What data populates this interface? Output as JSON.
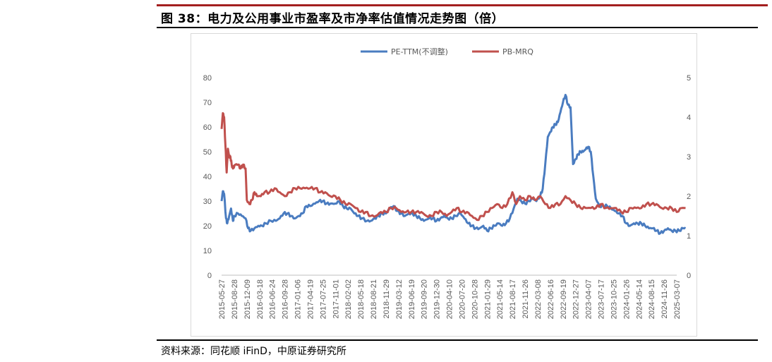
{
  "header": {
    "title": "图 38：电力及公用事业市盈率及市净率估值情况走势图（倍）"
  },
  "footer": {
    "source": "资料来源：同花顺 iFinD，中原证券研究所"
  },
  "colors": {
    "pe": "#4a7cc0",
    "pb": "#c0504d",
    "accent": "#a31f1f"
  },
  "chart_data": {
    "type": "line",
    "title": "电力及公用事业市盈率及市净率估值情况走势图（倍）",
    "legend_position": "top-center",
    "x_tick_labels": [
      "2015-05-27",
      "2015-08-28",
      "2015-12-09",
      "2016-03-18",
      "2016-06-24",
      "2016-09-28",
      "2017-01-06",
      "2017-04-19",
      "2017-07-25",
      "2017-11-01",
      "2018-02-02",
      "2018-05-18",
      "2018-08-21",
      "2018-11-29",
      "2019-03-12",
      "2019-06-19",
      "2019-09-20",
      "2019-12-30",
      "2020-04-10",
      "2020-07-20",
      "2020-10-28",
      "2021-01-29",
      "2021-05-14",
      "2021-08-17",
      "2021-11-26",
      "2022-03-08",
      "2022-06-16",
      "2022-09-19",
      "2022-12-27",
      "2023-04-07",
      "2023-07-17",
      "2023-10-25",
      "2024-01-26",
      "2024-05-14",
      "2024-08-15",
      "2024-11-26",
      "2025-03-07"
    ],
    "y_left": {
      "min": 0,
      "max": 80,
      "ticks": [
        0,
        10,
        20,
        30,
        40,
        50,
        60,
        70,
        80
      ]
    },
    "y_right": {
      "min": 0,
      "max": 5,
      "ticks": [
        0,
        1,
        2,
        3,
        4,
        5
      ]
    },
    "series": [
      {
        "name": "PE-TTM(不调整)",
        "axis": "left",
        "points": [
          [
            0,
            30
          ],
          [
            0.1,
            34
          ],
          [
            0.2,
            33
          ],
          [
            0.35,
            23
          ],
          [
            0.45,
            21
          ],
          [
            0.6,
            24
          ],
          [
            0.75,
            27
          ],
          [
            0.9,
            22
          ],
          [
            1.0,
            24
          ],
          [
            1.3,
            25
          ],
          [
            1.6,
            24
          ],
          [
            1.9,
            23
          ],
          [
            2.1,
            19
          ],
          [
            2.3,
            18
          ],
          [
            2.6,
            19
          ],
          [
            2.9,
            20
          ],
          [
            3.2,
            20
          ],
          [
            3.5,
            21
          ],
          [
            3.9,
            22
          ],
          [
            4.3,
            22
          ],
          [
            4.6,
            23
          ],
          [
            4.9,
            25
          ],
          [
            5.2,
            25
          ],
          [
            5.5,
            24
          ],
          [
            5.8,
            23
          ],
          [
            6.1,
            24
          ],
          [
            6.4,
            25
          ],
          [
            6.7,
            28
          ],
          [
            7.0,
            28
          ],
          [
            7.4,
            29
          ],
          [
            7.7,
            30
          ],
          [
            8.0,
            30
          ],
          [
            8.3,
            29
          ],
          [
            8.6,
            29
          ],
          [
            9.0,
            29
          ],
          [
            9.3,
            30
          ],
          [
            9.6,
            28
          ],
          [
            9.9,
            27
          ],
          [
            10.2,
            27
          ],
          [
            10.5,
            25
          ],
          [
            10.8,
            24
          ],
          [
            11.1,
            23
          ],
          [
            11.5,
            22
          ],
          [
            11.8,
            22
          ],
          [
            12.1,
            23
          ],
          [
            12.4,
            24
          ],
          [
            12.7,
            25
          ],
          [
            13.0,
            25
          ],
          [
            13.3,
            27
          ],
          [
            13.6,
            28
          ],
          [
            13.9,
            26
          ],
          [
            14.2,
            25
          ],
          [
            14.5,
            24
          ],
          [
            14.8,
            25
          ],
          [
            15.1,
            25
          ],
          [
            15.4,
            24
          ],
          [
            15.7,
            23
          ],
          [
            16.0,
            22
          ],
          [
            16.4,
            23
          ],
          [
            16.7,
            23
          ],
          [
            17.0,
            22
          ],
          [
            17.3,
            23
          ],
          [
            17.6,
            24
          ],
          [
            17.9,
            23
          ],
          [
            18.2,
            23
          ],
          [
            18.5,
            24
          ],
          [
            18.9,
            25
          ],
          [
            19.2,
            23
          ],
          [
            19.5,
            21
          ],
          [
            19.8,
            20
          ],
          [
            20.1,
            19
          ],
          [
            20.4,
            19
          ],
          [
            20.7,
            20
          ],
          [
            21.0,
            18
          ],
          [
            21.3,
            19
          ],
          [
            21.6,
            20
          ],
          [
            21.9,
            21
          ],
          [
            22.2,
            20
          ],
          [
            22.5,
            21
          ],
          [
            22.8,
            23
          ],
          [
            23.1,
            27
          ],
          [
            23.4,
            31
          ],
          [
            23.7,
            30
          ],
          [
            24.0,
            29
          ],
          [
            24.3,
            30
          ],
          [
            24.6,
            31
          ],
          [
            24.9,
            30
          ],
          [
            25.2,
            32
          ],
          [
            25.4,
            35
          ],
          [
            25.6,
            45
          ],
          [
            25.8,
            56
          ],
          [
            26.0,
            58
          ],
          [
            26.2,
            60
          ],
          [
            26.4,
            61
          ],
          [
            26.6,
            62
          ],
          [
            26.8,
            66
          ],
          [
            27.0,
            70
          ],
          [
            27.2,
            73
          ],
          [
            27.4,
            69
          ],
          [
            27.6,
            68
          ],
          [
            27.8,
            45
          ],
          [
            28.0,
            47
          ],
          [
            28.2,
            49
          ],
          [
            28.4,
            50
          ],
          [
            28.6,
            50
          ],
          [
            28.8,
            51
          ],
          [
            29.0,
            52
          ],
          [
            29.2,
            50
          ],
          [
            29.4,
            40
          ],
          [
            29.6,
            31
          ],
          [
            29.9,
            28
          ],
          [
            30.2,
            28
          ],
          [
            30.5,
            28
          ],
          [
            30.8,
            27
          ],
          [
            31.1,
            26
          ],
          [
            31.4,
            25
          ],
          [
            31.7,
            24
          ],
          [
            32.0,
            21
          ],
          [
            32.3,
            20
          ],
          [
            32.6,
            21
          ],
          [
            32.9,
            21
          ],
          [
            33.2,
            21
          ],
          [
            33.5,
            20
          ],
          [
            33.8,
            19
          ],
          [
            34.1,
            19
          ],
          [
            34.4,
            18
          ],
          [
            34.7,
            17
          ],
          [
            35.0,
            18
          ],
          [
            35.3,
            19
          ],
          [
            35.6,
            18
          ],
          [
            35.9,
            18
          ],
          [
            36.2,
            18
          ],
          [
            36.5,
            19
          ],
          [
            36.7,
            19
          ]
        ]
      },
      {
        "name": "PB-MRQ",
        "axis": "right",
        "points": [
          [
            0,
            3.7
          ],
          [
            0.1,
            4.1
          ],
          [
            0.2,
            4.0
          ],
          [
            0.3,
            3.3
          ],
          [
            0.4,
            2.6
          ],
          [
            0.5,
            3.2
          ],
          [
            0.6,
            3.0
          ],
          [
            0.7,
            3.0
          ],
          [
            0.8,
            2.8
          ],
          [
            0.9,
            2.7
          ],
          [
            1.1,
            2.8
          ],
          [
            1.3,
            2.8
          ],
          [
            1.5,
            2.7
          ],
          [
            1.7,
            2.8
          ],
          [
            1.9,
            2.7
          ],
          [
            2.0,
            1.9
          ],
          [
            2.2,
            1.8
          ],
          [
            2.4,
            1.9
          ],
          [
            2.6,
            2.1
          ],
          [
            2.8,
            2.0
          ],
          [
            3.1,
            2.0
          ],
          [
            3.4,
            2.1
          ],
          [
            3.8,
            2.1
          ],
          [
            4.2,
            2.2
          ],
          [
            4.6,
            2.1
          ],
          [
            5.0,
            2.0
          ],
          [
            5.4,
            2.1
          ],
          [
            5.8,
            2.2
          ],
          [
            6.2,
            2.2
          ],
          [
            6.6,
            2.2
          ],
          [
            7.0,
            2.2
          ],
          [
            7.4,
            2.2
          ],
          [
            7.8,
            2.1
          ],
          [
            8.2,
            2.1
          ],
          [
            8.6,
            2.0
          ],
          [
            9.0,
            2.0
          ],
          [
            9.4,
            1.9
          ],
          [
            9.8,
            1.8
          ],
          [
            10.2,
            1.8
          ],
          [
            10.6,
            1.7
          ],
          [
            11.0,
            1.6
          ],
          [
            11.4,
            1.6
          ],
          [
            11.8,
            1.5
          ],
          [
            12.2,
            1.5
          ],
          [
            12.6,
            1.6
          ],
          [
            13.0,
            1.6
          ],
          [
            13.4,
            1.7
          ],
          [
            13.8,
            1.7
          ],
          [
            14.2,
            1.6
          ],
          [
            14.6,
            1.6
          ],
          [
            15.0,
            1.6
          ],
          [
            15.4,
            1.6
          ],
          [
            15.8,
            1.6
          ],
          [
            16.2,
            1.5
          ],
          [
            16.6,
            1.5
          ],
          [
            17.0,
            1.6
          ],
          [
            17.4,
            1.6
          ],
          [
            17.8,
            1.5
          ],
          [
            18.2,
            1.6
          ],
          [
            18.6,
            1.7
          ],
          [
            19.0,
            1.6
          ],
          [
            19.4,
            1.6
          ],
          [
            19.8,
            1.5
          ],
          [
            20.2,
            1.4
          ],
          [
            20.6,
            1.5
          ],
          [
            21.0,
            1.6
          ],
          [
            21.4,
            1.7
          ],
          [
            21.8,
            1.8
          ],
          [
            22.2,
            1.7
          ],
          [
            22.6,
            1.8
          ],
          [
            23.0,
            2.1
          ],
          [
            23.3,
            1.8
          ],
          [
            23.6,
            2.0
          ],
          [
            24.0,
            1.9
          ],
          [
            24.4,
            2.0
          ],
          [
            24.8,
            1.9
          ],
          [
            25.2,
            2.0
          ],
          [
            25.6,
            1.8
          ],
          [
            26.0,
            1.7
          ],
          [
            26.4,
            1.8
          ],
          [
            26.8,
            1.8
          ],
          [
            27.2,
            2.0
          ],
          [
            27.6,
            1.9
          ],
          [
            28.0,
            1.8
          ],
          [
            28.4,
            1.7
          ],
          [
            28.8,
            1.7
          ],
          [
            29.2,
            1.7
          ],
          [
            29.6,
            1.7
          ],
          [
            30.0,
            1.8
          ],
          [
            30.4,
            1.7
          ],
          [
            30.8,
            1.7
          ],
          [
            31.2,
            1.7
          ],
          [
            31.6,
            1.6
          ],
          [
            32.0,
            1.6
          ],
          [
            32.4,
            1.7
          ],
          [
            32.8,
            1.7
          ],
          [
            33.2,
            1.7
          ],
          [
            33.6,
            1.8
          ],
          [
            34.0,
            1.8
          ],
          [
            34.4,
            1.8
          ],
          [
            34.8,
            1.7
          ],
          [
            35.2,
            1.7
          ],
          [
            35.6,
            1.7
          ],
          [
            36.0,
            1.6
          ],
          [
            36.4,
            1.7
          ],
          [
            36.7,
            1.7
          ]
        ]
      }
    ]
  }
}
